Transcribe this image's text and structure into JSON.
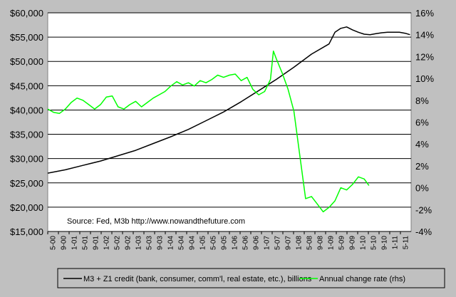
{
  "chart_data": {
    "type": "line",
    "title": "",
    "source_note": "Source: Fed, M3b  http://www.nowandthefuture.com",
    "x_tick_labels": [
      "5-00",
      "9-00",
      "1-01",
      "5-01",
      "9-01",
      "1-02",
      "5-02",
      "9-02",
      "1-03",
      "5-03",
      "9-03",
      "1-04",
      "5-04",
      "9-04",
      "1-05",
      "5-05",
      "9-05",
      "1-06",
      "5-06",
      "9-06",
      "1-07",
      "5-07",
      "9-07",
      "1-08",
      "5-08",
      "9-08",
      "1-09",
      "5-09",
      "9-09",
      "1-10",
      "5-10",
      "9-10",
      "1-11",
      "5-11"
    ],
    "y_left": {
      "min": 15000,
      "max": 60000,
      "step": 5000,
      "tick_labels": [
        "$15,000",
        "$20,000",
        "$25,000",
        "$30,000",
        "$35,000",
        "$40,000",
        "$45,000",
        "$50,000",
        "$55,000",
        "$60,000"
      ]
    },
    "y_right": {
      "min": -4,
      "max": 16,
      "step": 2,
      "tick_labels": [
        "-4%",
        "-2%",
        "0%",
        "2%",
        "4%",
        "6%",
        "8%",
        "10%",
        "12%",
        "14%",
        "16%"
      ]
    },
    "grid": "horizontal",
    "legend_position": "bottom",
    "series": [
      {
        "name": "M3 + Z1 credit (bank, consumer, comm'l, real estate, etc.), billions",
        "axis": "left",
        "color": "#000000",
        "points": [
          [
            0,
            27000
          ],
          [
            3,
            27700
          ],
          [
            6,
            28600
          ],
          [
            9,
            29500
          ],
          [
            12,
            30600
          ],
          [
            15,
            31700
          ],
          [
            18,
            33100
          ],
          [
            21,
            34500
          ],
          [
            24,
            36000
          ],
          [
            27,
            37800
          ],
          [
            30,
            39600
          ],
          [
            33,
            41700
          ],
          [
            36,
            44000
          ],
          [
            39,
            46300
          ],
          [
            42,
            48800
          ],
          [
            45,
            51500
          ],
          [
            48,
            53600
          ],
          [
            49,
            56000
          ],
          [
            50,
            56800
          ],
          [
            51,
            57100
          ],
          [
            52,
            56500
          ],
          [
            53,
            56000
          ],
          [
            54,
            55600
          ],
          [
            55,
            55500
          ],
          [
            56,
            55700
          ],
          [
            57,
            55900
          ],
          [
            58,
            56000
          ],
          [
            59,
            56000
          ],
          [
            60,
            56000
          ],
          [
            61,
            55800
          ],
          [
            61.8,
            55500
          ]
        ]
      },
      {
        "name": "Annual change rate (rhs)",
        "axis": "right",
        "color": "#00ff00",
        "points": [
          [
            0,
            7.2
          ],
          [
            1,
            6.9
          ],
          [
            2,
            6.8
          ],
          [
            3,
            7.2
          ],
          [
            4,
            7.8
          ],
          [
            5,
            8.2
          ],
          [
            6,
            8.0
          ],
          [
            7,
            7.6
          ],
          [
            8,
            7.2
          ],
          [
            9,
            7.6
          ],
          [
            10,
            8.3
          ],
          [
            11,
            8.4
          ],
          [
            12,
            7.4
          ],
          [
            13,
            7.2
          ],
          [
            14,
            7.6
          ],
          [
            15,
            7.9
          ],
          [
            16,
            7.4
          ],
          [
            17,
            7.8
          ],
          [
            18,
            8.2
          ],
          [
            19,
            8.5
          ],
          [
            20,
            8.8
          ],
          [
            21,
            9.3
          ],
          [
            22,
            9.7
          ],
          [
            23,
            9.4
          ],
          [
            24,
            9.6
          ],
          [
            25,
            9.3
          ],
          [
            26,
            9.8
          ],
          [
            27,
            9.6
          ],
          [
            28,
            9.9
          ],
          [
            29,
            10.3
          ],
          [
            30,
            10.1
          ],
          [
            31,
            10.3
          ],
          [
            32,
            10.4
          ],
          [
            33,
            9.8
          ],
          [
            34,
            10.1
          ],
          [
            35,
            9.0
          ],
          [
            36,
            8.5
          ],
          [
            37,
            8.8
          ],
          [
            38,
            9.9
          ],
          [
            38.5,
            12.5
          ],
          [
            39,
            11.8
          ],
          [
            40,
            10.5
          ],
          [
            41,
            9.0
          ],
          [
            42,
            7.0
          ],
          [
            43,
            3.0
          ],
          [
            44,
            -1.0
          ],
          [
            45,
            -0.8
          ],
          [
            46,
            -1.5
          ],
          [
            47,
            -2.2
          ],
          [
            48,
            -1.8
          ],
          [
            49,
            -1.2
          ],
          [
            50,
            0
          ],
          [
            51,
            -0.2
          ],
          [
            52,
            0.3
          ],
          [
            53,
            1.0
          ],
          [
            54,
            0.8
          ],
          [
            54.8,
            0.2
          ]
        ]
      }
    ]
  }
}
